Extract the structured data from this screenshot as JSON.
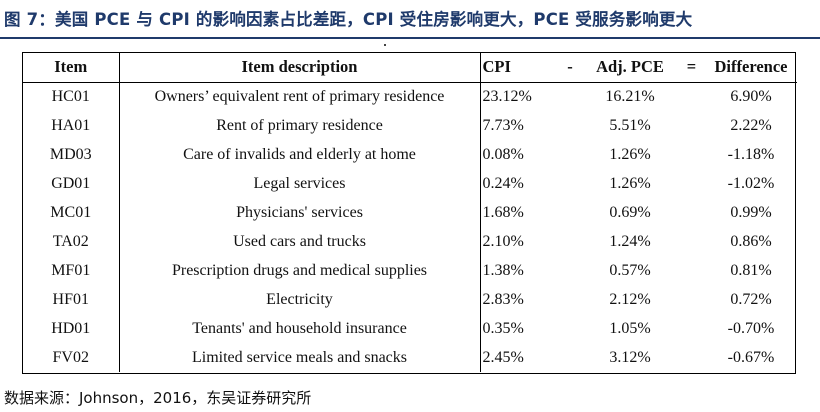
{
  "title": "图 7：美国 PCE 与 CPI 的影响因素占比差距，CPI 受住房影响更大，PCE 受服务影响更大",
  "table": {
    "headers": {
      "item": "Item",
      "description": "Item description",
      "cpi": "CPI",
      "op_minus": "-",
      "adj_pce": "Adj. PCE",
      "op_equals": "=",
      "difference": "Difference"
    },
    "rows": [
      {
        "item": "HC01",
        "description": "Owners’ equivalent rent of primary residence",
        "cpi": "23.12%",
        "adj_pce": "16.21%",
        "difference": "6.90%"
      },
      {
        "item": "HA01",
        "description": "Rent of primary residence",
        "cpi": "7.73%",
        "adj_pce": "5.51%",
        "difference": "2.22%"
      },
      {
        "item": "MD03",
        "description": "Care of invalids and elderly at home",
        "cpi": "0.08%",
        "adj_pce": "1.26%",
        "difference": "-1.18%"
      },
      {
        "item": "GD01",
        "description": "Legal services",
        "cpi": "0.24%",
        "adj_pce": "1.26%",
        "difference": "-1.02%"
      },
      {
        "item": "MC01",
        "description": "Physicians' services",
        "cpi": "1.68%",
        "adj_pce": "0.69%",
        "difference": "0.99%"
      },
      {
        "item": "TA02",
        "description": "Used cars and trucks",
        "cpi": "2.10%",
        "adj_pce": "1.24%",
        "difference": "0.86%"
      },
      {
        "item": "MF01",
        "description": "Prescription drugs and medical supplies",
        "cpi": "1.38%",
        "adj_pce": "0.57%",
        "difference": "0.81%"
      },
      {
        "item": "HF01",
        "description": "Electricity",
        "cpi": "2.83%",
        "adj_pce": "2.12%",
        "difference": "0.72%"
      },
      {
        "item": "HD01",
        "description": "Tenants' and household insurance",
        "cpi": "0.35%",
        "adj_pce": "1.05%",
        "difference": "-0.70%"
      },
      {
        "item": "FV02",
        "description": "Limited service meals and snacks",
        "cpi": "2.45%",
        "adj_pce": "3.12%",
        "difference": "-0.67%"
      }
    ]
  },
  "source": "数据来源：Johnson，2016，东吴证券研究所"
}
